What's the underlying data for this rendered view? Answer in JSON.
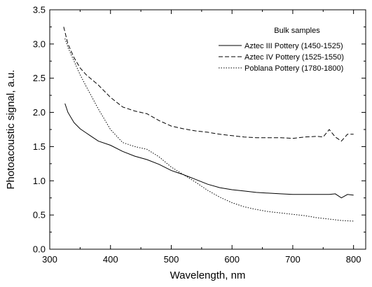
{
  "chart_data": {
    "type": "line",
    "title": "",
    "xlabel": "Wavelength, nm",
    "ylabel": "Photoacoustic signal, a.u.",
    "xlim": [
      300,
      820
    ],
    "ylim": [
      0.0,
      3.5
    ],
    "x_ticks": [
      300,
      400,
      500,
      600,
      700,
      800
    ],
    "y_ticks": [
      0.0,
      0.5,
      1.0,
      1.5,
      2.0,
      2.5,
      3.0,
      3.5
    ],
    "x_tick_labels": [
      "300",
      "400",
      "500",
      "600",
      "700",
      "800"
    ],
    "y_tick_labels": [
      "0.0",
      "0.5",
      "1.0",
      "1.5",
      "2.0",
      "2.5",
      "3.0",
      "3.5"
    ],
    "grid": false,
    "legend": {
      "title": "Bulk samples",
      "position": "top-right"
    },
    "series": [
      {
        "name": "Aztec III Pottery (1450-1525)",
        "style": "solid",
        "color": "#000000",
        "x": [
          325,
          330,
          340,
          350,
          360,
          380,
          400,
          420,
          440,
          460,
          480,
          500,
          520,
          540,
          560,
          580,
          600,
          620,
          640,
          660,
          680,
          700,
          720,
          740,
          760,
          770,
          780,
          790,
          800
        ],
        "y": [
          2.13,
          2.0,
          1.85,
          1.76,
          1.7,
          1.58,
          1.52,
          1.43,
          1.36,
          1.31,
          1.24,
          1.15,
          1.09,
          1.02,
          0.95,
          0.9,
          0.87,
          0.85,
          0.83,
          0.82,
          0.81,
          0.8,
          0.8,
          0.8,
          0.8,
          0.81,
          0.75,
          0.8,
          0.79
        ]
      },
      {
        "name": "Aztec IV Pottery (1525-1550)",
        "style": "dashed",
        "color": "#000000",
        "x": [
          323,
          330,
          340,
          350,
          360,
          380,
          400,
          420,
          440,
          460,
          480,
          500,
          520,
          540,
          560,
          580,
          600,
          620,
          640,
          660,
          680,
          700,
          720,
          740,
          750,
          760,
          770,
          780,
          790,
          800
        ],
        "y": [
          3.25,
          3.0,
          2.8,
          2.65,
          2.55,
          2.4,
          2.22,
          2.08,
          2.02,
          1.98,
          1.88,
          1.8,
          1.76,
          1.73,
          1.71,
          1.68,
          1.66,
          1.64,
          1.63,
          1.63,
          1.63,
          1.62,
          1.64,
          1.65,
          1.64,
          1.75,
          1.64,
          1.58,
          1.68,
          1.68
        ]
      },
      {
        "name": "Poblana Pottery (1780-1800)",
        "style": "dotted",
        "color": "#000000",
        "x": [
          325,
          330,
          340,
          350,
          360,
          380,
          400,
          420,
          440,
          460,
          480,
          500,
          520,
          540,
          560,
          580,
          600,
          620,
          640,
          660,
          680,
          700,
          720,
          740,
          760,
          780,
          800
        ],
        "y": [
          3.08,
          2.95,
          2.75,
          2.55,
          2.38,
          2.05,
          1.75,
          1.56,
          1.5,
          1.46,
          1.35,
          1.2,
          1.09,
          0.98,
          0.86,
          0.76,
          0.68,
          0.62,
          0.58,
          0.55,
          0.53,
          0.51,
          0.49,
          0.46,
          0.44,
          0.42,
          0.41
        ]
      }
    ]
  }
}
